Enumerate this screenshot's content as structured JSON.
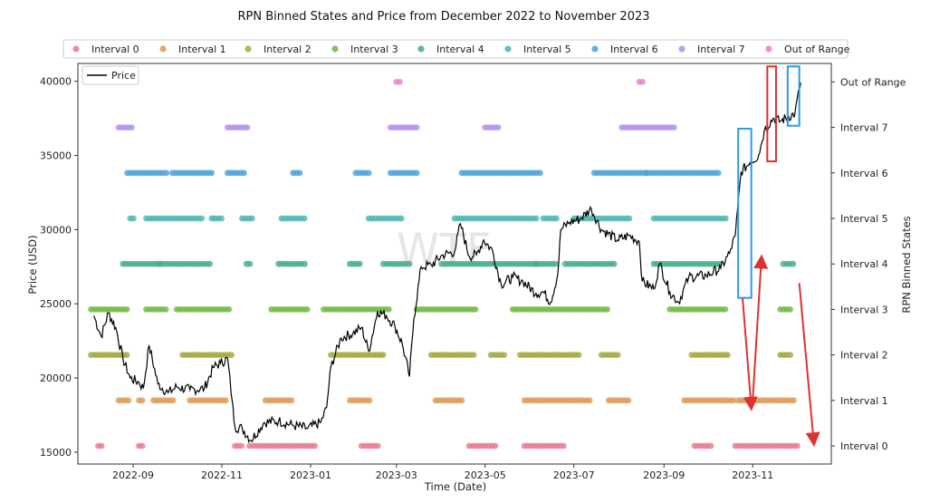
{
  "chart_data": {
    "type": "scatter+line",
    "title": "RPN Binned States and Price from December 2022 to November 2023",
    "xlabel": "Time (Date)",
    "ylabel_left": "Price (USD)",
    "ylabel_right": "RPN Binned States",
    "x_range": [
      "2022-07-25",
      "2023-12-25"
    ],
    "ylim_left": [
      14200,
      41200
    ],
    "x_ticks": [
      {
        "date": "2022-09-01",
        "label": "2022-09"
      },
      {
        "date": "2022-11-01",
        "label": "2022-11"
      },
      {
        "date": "2023-01-01",
        "label": "2023-01"
      },
      {
        "date": "2023-03-01",
        "label": "2023-03"
      },
      {
        "date": "2023-05-01",
        "label": "2023-05"
      },
      {
        "date": "2023-07-01",
        "label": "2023-07"
      },
      {
        "date": "2023-09-01",
        "label": "2023-09"
      },
      {
        "date": "2023-11-01",
        "label": "2023-11"
      }
    ],
    "y_ticks_left": [
      15000,
      20000,
      25000,
      30000,
      35000,
      40000
    ],
    "y_tick_labels_left": [
      "15000",
      "20000",
      "25000",
      "30000",
      "35000",
      "40000"
    ],
    "y_ticks_right": [
      "Interval 0",
      "Interval 1",
      "Interval 2",
      "Interval 3",
      "Interval 4",
      "Interval 5",
      "Interval 6",
      "Interval 7",
      "Out of Range"
    ],
    "legend": {
      "placement": "top",
      "entries": [
        {
          "label": "Interval 0",
          "color": "#e9788d"
        },
        {
          "label": "Interval 1",
          "color": "#d99a55"
        },
        {
          "label": "Interval 2",
          "color": "#a3a83e"
        },
        {
          "label": "Interval 3",
          "color": "#6fb644"
        },
        {
          "label": "Interval 4",
          "color": "#43ad86"
        },
        {
          "label": "Interval 5",
          "color": "#4ab5ac"
        },
        {
          "label": "Interval 6",
          "color": "#4aa1d8"
        },
        {
          "label": "Interval 7",
          "color": "#b18ee8"
        },
        {
          "label": "Out of Range",
          "color": "#ea7fc9"
        }
      ]
    },
    "price_legend_label": "Price",
    "price_series": {
      "name": "Price",
      "color": "#000000",
      "points": [
        [
          "2022-08-05",
          24200
        ],
        [
          "2022-08-10",
          22800
        ],
        [
          "2022-08-15",
          24400
        ],
        [
          "2022-08-20",
          23400
        ],
        [
          "2022-08-25",
          21300
        ],
        [
          "2022-08-30",
          20000
        ],
        [
          "2022-09-05",
          19700
        ],
        [
          "2022-09-08",
          19300
        ],
        [
          "2022-09-12",
          22200
        ],
        [
          "2022-09-18",
          19600
        ],
        [
          "2022-09-25",
          19000
        ],
        [
          "2022-10-01",
          19400
        ],
        [
          "2022-10-10",
          19200
        ],
        [
          "2022-10-20",
          19300
        ],
        [
          "2022-10-26",
          20700
        ],
        [
          "2022-10-31",
          21000
        ],
        [
          "2022-11-05",
          21300
        ],
        [
          "2022-11-08",
          18500
        ],
        [
          "2022-11-10",
          16700
        ],
        [
          "2022-11-15",
          16600
        ],
        [
          "2022-11-21",
          15800
        ],
        [
          "2022-11-30",
          17000
        ],
        [
          "2022-12-10",
          17100
        ],
        [
          "2022-12-20",
          16800
        ],
        [
          "2022-12-30",
          16600
        ],
        [
          "2023-01-08",
          17000
        ],
        [
          "2023-01-12",
          18000
        ],
        [
          "2023-01-15",
          20800
        ],
        [
          "2023-01-22",
          22700
        ],
        [
          "2023-01-30",
          23000
        ],
        [
          "2023-02-05",
          23400
        ],
        [
          "2023-02-10",
          21800
        ],
        [
          "2023-02-16",
          24500
        ],
        [
          "2023-02-22",
          24200
        ],
        [
          "2023-02-28",
          23500
        ],
        [
          "2023-03-05",
          22300
        ],
        [
          "2023-03-10",
          20100
        ],
        [
          "2023-03-13",
          24000
        ],
        [
          "2023-03-18",
          27500
        ],
        [
          "2023-03-25",
          27600
        ],
        [
          "2023-04-02",
          28300
        ],
        [
          "2023-04-10",
          28500
        ],
        [
          "2023-04-14",
          30400
        ],
        [
          "2023-04-20",
          28200
        ],
        [
          "2023-04-25",
          28300
        ],
        [
          "2023-04-30",
          29300
        ],
        [
          "2023-05-06",
          28600
        ],
        [
          "2023-05-12",
          26300
        ],
        [
          "2023-05-20",
          26800
        ],
        [
          "2023-05-27",
          26500
        ],
        [
          "2023-06-05",
          25700
        ],
        [
          "2023-06-10",
          25800
        ],
        [
          "2023-06-15",
          25100
        ],
        [
          "2023-06-20",
          27000
        ],
        [
          "2023-06-22",
          30000
        ],
        [
          "2023-06-28",
          30500
        ],
        [
          "2023-07-05",
          30700
        ],
        [
          "2023-07-13",
          31400
        ],
        [
          "2023-07-20",
          30000
        ],
        [
          "2023-07-31",
          29300
        ],
        [
          "2023-08-08",
          29600
        ],
        [
          "2023-08-15",
          29200
        ],
        [
          "2023-08-17",
          26500
        ],
        [
          "2023-08-25",
          26000
        ],
        [
          "2023-08-29",
          27700
        ],
        [
          "2023-09-05",
          25800
        ],
        [
          "2023-09-11",
          25100
        ],
        [
          "2023-09-18",
          26800
        ],
        [
          "2023-09-30",
          26900
        ],
        [
          "2023-10-10",
          27400
        ],
        [
          "2023-10-16",
          28400
        ],
        [
          "2023-10-20",
          29600
        ],
        [
          "2023-10-24",
          33900
        ],
        [
          "2023-10-30",
          34500
        ],
        [
          "2023-11-05",
          35000
        ],
        [
          "2023-11-09",
          36700
        ],
        [
          "2023-11-15",
          37500
        ],
        [
          "2023-11-20",
          37300
        ],
        [
          "2023-11-25",
          37600
        ],
        [
          "2023-11-30",
          37800
        ],
        [
          "2023-12-03",
          39500
        ],
        [
          "2023-12-04",
          39900
        ]
      ]
    },
    "state_points": {
      "description": "Binned state markers (interval index on right axis) over time; each segment is a run of dense markers [start, end, interval].",
      "segments": [
        [
          "2022-08-03",
          "2022-08-28",
          3
        ],
        [
          "2022-08-03",
          "2022-08-28",
          2
        ],
        [
          "2022-08-08",
          "2022-08-11",
          0
        ],
        [
          "2022-08-22",
          "2022-08-29",
          1
        ],
        [
          "2022-08-22",
          "2022-09-01",
          7
        ],
        [
          "2022-08-25",
          "2022-09-20",
          4
        ],
        [
          "2022-08-28",
          "2022-09-25",
          6
        ],
        [
          "2022-08-30",
          "2022-09-02",
          5
        ],
        [
          "2022-09-05",
          "2022-09-08",
          1
        ],
        [
          "2022-09-05",
          "2022-09-08",
          0
        ],
        [
          "2022-09-10",
          "2022-10-20",
          5
        ],
        [
          "2022-09-10",
          "2022-09-25",
          3
        ],
        [
          "2022-09-15",
          "2022-09-30",
          1
        ],
        [
          "2022-09-20",
          "2022-10-25",
          4
        ],
        [
          "2022-09-28",
          "2022-10-25",
          6
        ],
        [
          "2022-10-01",
          "2022-11-08",
          3
        ],
        [
          "2022-10-05",
          "2022-11-08",
          2
        ],
        [
          "2022-10-10",
          "2022-11-05",
          1
        ],
        [
          "2022-10-25",
          "2022-11-01",
          5
        ],
        [
          "2022-11-05",
          "2022-11-20",
          7
        ],
        [
          "2022-11-05",
          "2022-11-18",
          6
        ],
        [
          "2022-11-10",
          "2022-11-15",
          0
        ],
        [
          "2022-11-15",
          "2022-11-22",
          5
        ],
        [
          "2022-11-18",
          "2022-11-22",
          4
        ],
        [
          "2022-11-20",
          "2023-01-05",
          0
        ],
        [
          "2022-12-01",
          "2022-12-20",
          1
        ],
        [
          "2022-12-05",
          "2022-12-30",
          3
        ],
        [
          "2022-12-10",
          "2022-12-30",
          4
        ],
        [
          "2022-12-12",
          "2022-12-28",
          5
        ],
        [
          "2022-12-20",
          "2022-12-25",
          6
        ],
        [
          "2023-01-10",
          "2023-02-25",
          3
        ],
        [
          "2023-01-15",
          "2023-02-20",
          2
        ],
        [
          "2023-01-28",
          "2023-02-12",
          1
        ],
        [
          "2023-01-28",
          "2023-02-05",
          4
        ],
        [
          "2023-02-01",
          "2023-02-10",
          6
        ],
        [
          "2023-02-05",
          "2023-02-18",
          0
        ],
        [
          "2023-02-10",
          "2023-03-05",
          5
        ],
        [
          "2023-02-20",
          "2023-03-10",
          4
        ],
        [
          "2023-02-25",
          "2023-03-15",
          7
        ],
        [
          "2023-02-25",
          "2023-03-15",
          6
        ],
        [
          "2023-03-01",
          "2023-03-05",
          8
        ],
        [
          "2023-03-15",
          "2023-04-25",
          3
        ],
        [
          "2023-03-25",
          "2023-04-25",
          2
        ],
        [
          "2023-03-28",
          "2023-04-15",
          1
        ],
        [
          "2023-04-01",
          "2023-06-05",
          4
        ],
        [
          "2023-04-10",
          "2023-06-05",
          5
        ],
        [
          "2023-04-15",
          "2023-06-08",
          6
        ],
        [
          "2023-04-20",
          "2023-05-08",
          0
        ],
        [
          "2023-05-01",
          "2023-05-12",
          7
        ],
        [
          "2023-05-05",
          "2023-05-15",
          2
        ],
        [
          "2023-05-20",
          "2023-07-25",
          3
        ],
        [
          "2023-05-25",
          "2023-07-05",
          2
        ],
        [
          "2023-05-28",
          "2023-07-12",
          1
        ],
        [
          "2023-05-28",
          "2023-06-25",
          0
        ],
        [
          "2023-06-05",
          "2023-06-20",
          4
        ],
        [
          "2023-06-10",
          "2023-06-20",
          5
        ],
        [
          "2023-06-25",
          "2023-07-30",
          4
        ],
        [
          "2023-07-01",
          "2023-08-10",
          5
        ],
        [
          "2023-07-15",
          "2023-08-20",
          6
        ],
        [
          "2023-07-25",
          "2023-08-08",
          1
        ],
        [
          "2023-07-20",
          "2023-08-02",
          2
        ],
        [
          "2023-08-03",
          "2023-09-10",
          7
        ],
        [
          "2023-08-15",
          "2023-08-18",
          8
        ],
        [
          "2023-08-20",
          "2023-10-10",
          6
        ],
        [
          "2023-08-25",
          "2023-10-15",
          5
        ],
        [
          "2023-08-25",
          "2023-10-10",
          4
        ],
        [
          "2023-09-05",
          "2023-10-15",
          3
        ],
        [
          "2023-09-15",
          "2023-10-20",
          1
        ],
        [
          "2023-09-20",
          "2023-10-15",
          2
        ],
        [
          "2023-09-22",
          "2023-10-05",
          0
        ],
        [
          "2023-10-20",
          "2023-12-03",
          0
        ],
        [
          "2023-10-22",
          "2023-12-01",
          1
        ],
        [
          "2023-11-20",
          "2023-11-28",
          2
        ],
        [
          "2023-11-20",
          "2023-11-28",
          3
        ],
        [
          "2023-11-22",
          "2023-11-30",
          4
        ]
      ]
    },
    "annotations": {
      "boxes": [
        {
          "color": "#2a9be0",
          "x0": "2023-10-22",
          "x1": "2023-10-31",
          "y0": 25400,
          "y1": 36800
        },
        {
          "color": "#e03131",
          "x0": "2023-11-11",
          "x1": "2023-11-17",
          "y0": 34600,
          "y1": 41000
        },
        {
          "color": "#2a9be0",
          "x0": "2023-11-25",
          "x1": "2023-12-03",
          "y0": 37000,
          "y1": 41000
        }
      ],
      "arrows": [
        {
          "color": "#e03131",
          "from": [
            "2023-10-25",
            25400
          ],
          "to": [
            "2023-10-31",
            18000
          ]
        },
        {
          "color": "#e03131",
          "from": [
            "2023-11-01",
            18600
          ],
          "to": [
            "2023-11-07",
            28100
          ]
        },
        {
          "color": "#e03131",
          "from": [
            "2023-12-03",
            26400
          ],
          "to": [
            "2023-12-13",
            15600
          ]
        }
      ]
    },
    "watermark": "WTF"
  }
}
